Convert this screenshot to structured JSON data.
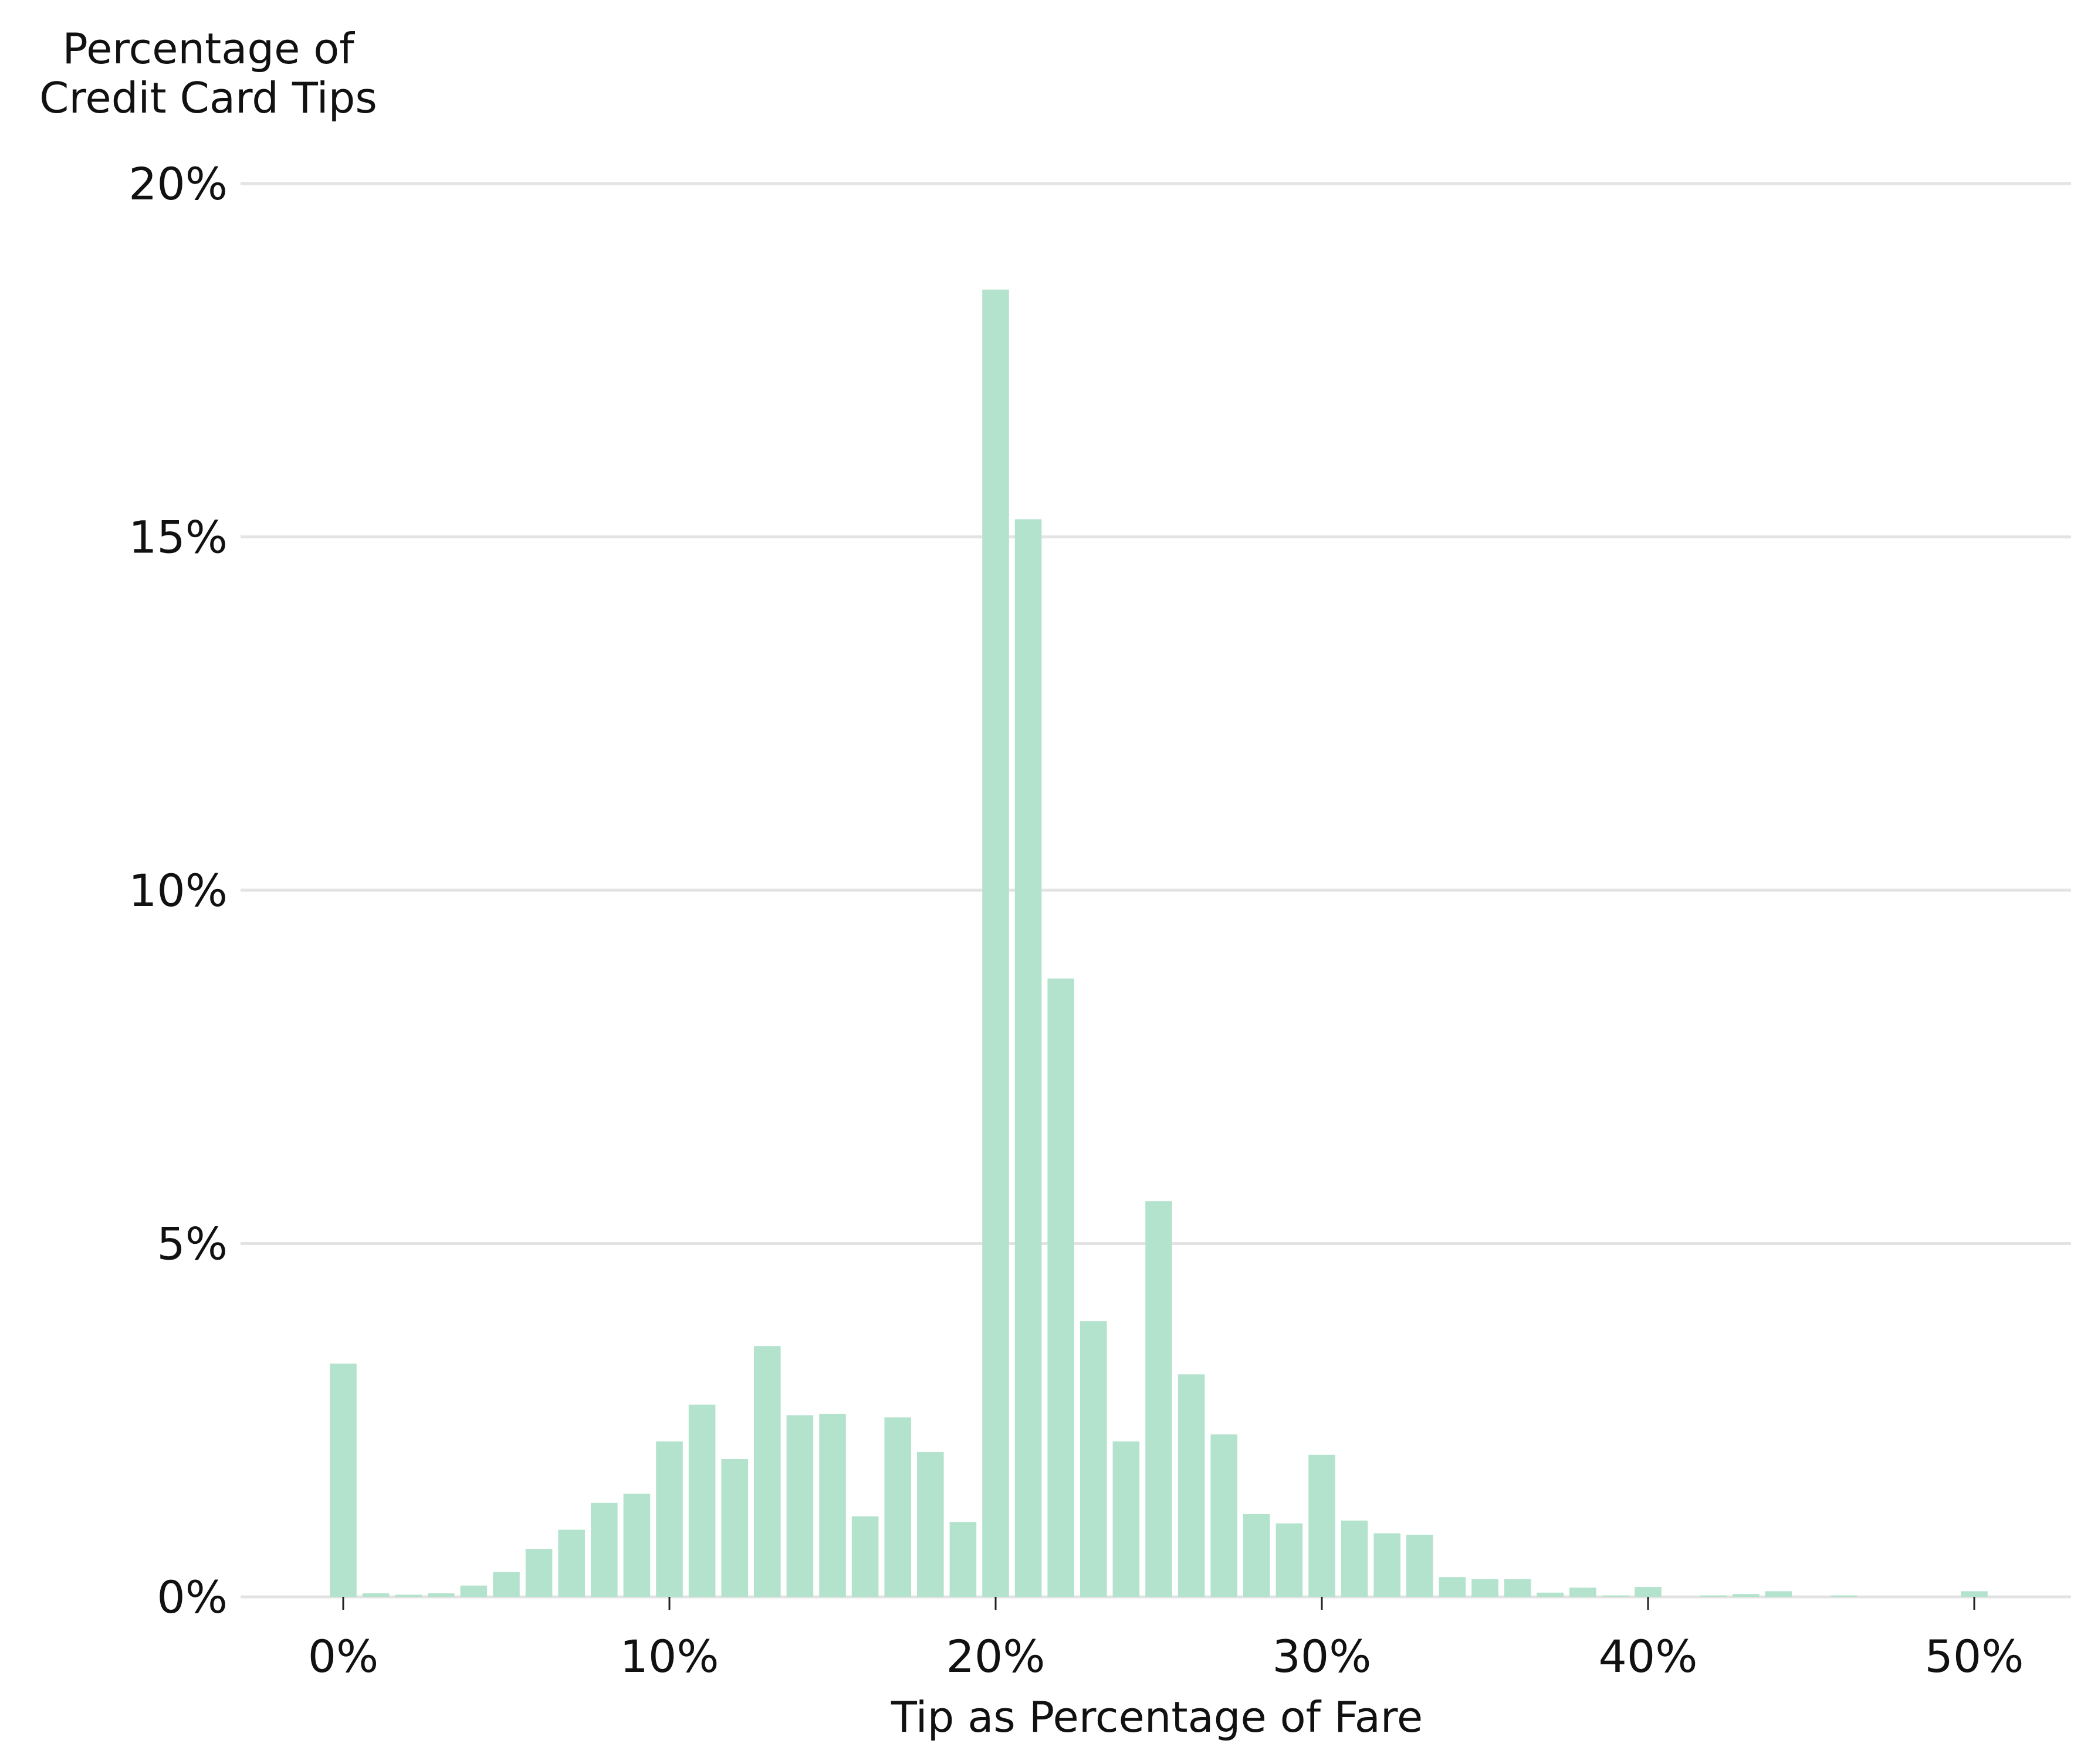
{
  "chart_data": {
    "type": "bar",
    "ylabel_lines": [
      "Percentage of",
      "Credit Card Tips"
    ],
    "xlabel": "Tip as Percentage of Fare",
    "xlim": [
      -3,
      53
    ],
    "ylim": [
      0,
      20
    ],
    "x_ticks": [
      0,
      10,
      20,
      30,
      40,
      50
    ],
    "x_tick_labels": [
      "0%",
      "10%",
      "20%",
      "30%",
      "40%",
      "50%"
    ],
    "y_ticks": [
      0,
      5,
      10,
      15,
      20
    ],
    "y_tick_labels": [
      "0%",
      "5%",
      "10%",
      "15%",
      "20%"
    ],
    "grid": "horizontal",
    "bar_color": "#b4e3cd",
    "x": [
      0,
      1,
      2,
      3,
      4,
      5,
      6,
      7,
      8,
      9,
      10,
      11,
      12,
      13,
      14,
      15,
      16,
      17,
      18,
      19,
      20,
      21,
      22,
      23,
      24,
      25,
      26,
      27,
      28,
      29,
      30,
      31,
      32,
      33,
      34,
      35,
      36,
      37,
      38,
      39,
      40,
      41,
      42,
      43,
      44,
      45,
      46,
      47,
      48,
      49,
      50
    ],
    "values": [
      3.3,
      0.05,
      0.03,
      0.05,
      0.16,
      0.35,
      0.68,
      0.95,
      1.33,
      1.46,
      2.2,
      2.72,
      1.95,
      3.55,
      2.57,
      2.59,
      1.14,
      2.54,
      2.05,
      1.06,
      18.5,
      15.25,
      8.75,
      3.9,
      2.2,
      5.6,
      3.15,
      2.3,
      1.17,
      1.04,
      2.01,
      1.08,
      0.9,
      0.88,
      0.28,
      0.25,
      0.25,
      0.06,
      0.13,
      0.02,
      0.14,
      0.0,
      0.02,
      0.04,
      0.08,
      0.0,
      0.02,
      0.0,
      0.0,
      0.0,
      0.08
    ]
  }
}
